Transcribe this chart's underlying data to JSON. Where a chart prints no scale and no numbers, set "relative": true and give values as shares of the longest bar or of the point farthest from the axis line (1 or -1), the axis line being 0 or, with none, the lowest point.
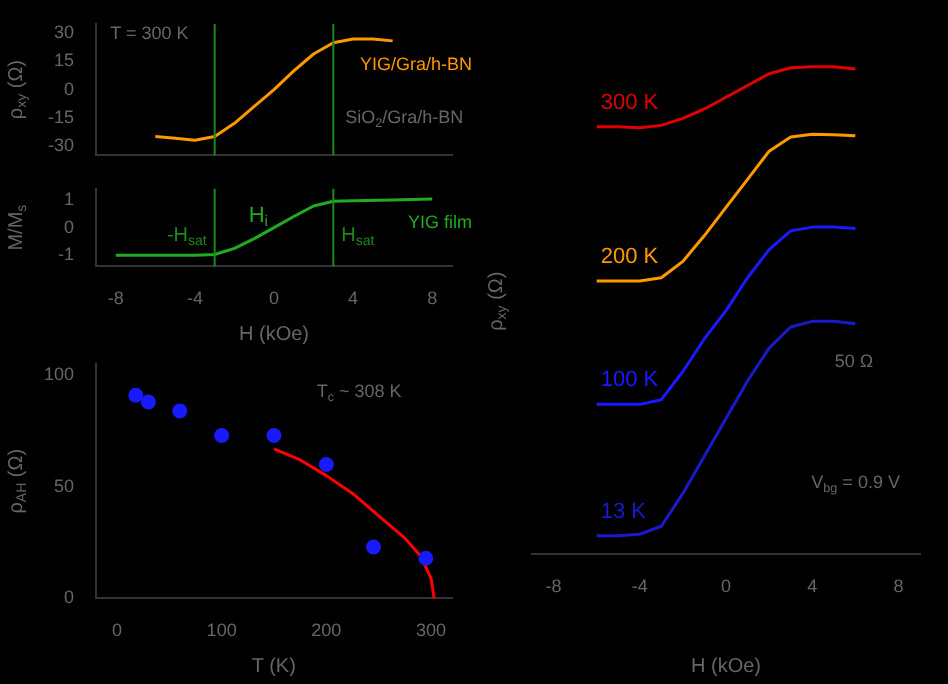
{
  "chart_data": [
    {
      "type": "line",
      "ylabel": "ρ$_{xy}$ (Ω)",
      "xlim": [
        -9,
        9
      ],
      "xticks": [
        -8,
        -4,
        0,
        4,
        8
      ],
      "ylim": [
        -35,
        35
      ],
      "yticks": [
        -30,
        -15,
        0,
        15,
        30
      ],
      "tick_labels": "y",
      "marker": "none",
      "grid": false,
      "legend": false,
      "series": [
        {
          "name": "YIG/Gra/h-BN",
          "color": "#ff9900",
          "x": [
            -6,
            -5,
            -4,
            -3,
            -2,
            -1,
            0,
            1,
            2,
            3,
            4,
            5,
            6
          ],
          "values": [
            -25,
            -26,
            -27,
            -25,
            -18,
            -9,
            0,
            10,
            19,
            25,
            27,
            27,
            26
          ]
        }
      ],
      "ref_lines": [
        {
          "axis": "x",
          "value": -3,
          "color": "#1a8a1a"
        },
        {
          "axis": "x",
          "value": 3,
          "color": "#1a8a1a"
        }
      ],
      "annotations": [
        "T = 300 K",
        "SiO$_{2}$/Gra/h-BN"
      ]
    },
    {
      "type": "line",
      "xlabel": "H (kOe)",
      "ylabel": "M/M$_{s}$",
      "xlim": [
        -9,
        9
      ],
      "xticks": [
        -8,
        -4,
        0,
        4,
        8
      ],
      "ylim": [
        -1.4,
        1.4
      ],
      "yticks": [
        -1,
        0,
        1
      ],
      "marker": "none",
      "grid": false,
      "legend": false,
      "series": [
        {
          "name": "YIG film",
          "color": "#22aa22",
          "x": [
            -8,
            -6,
            -4,
            -3,
            -2,
            -1,
            0,
            1,
            2,
            3,
            4,
            6,
            8
          ],
          "values": [
            -1,
            -1,
            -1,
            -0.97,
            -0.75,
            -0.4,
            0,
            0.4,
            0.78,
            0.95,
            0.97,
            1,
            1.03
          ]
        }
      ],
      "ref_lines": [
        {
          "axis": "x",
          "value": -3,
          "label": "-H$_{sat}$",
          "color": "#1a8a1a"
        },
        {
          "axis": "x",
          "value": 3,
          "label": "H$_{sat}$",
          "color": "#1a8a1a"
        }
      ],
      "annotations": [
        {
          "text": "H$_{i}$",
          "x": 0,
          "y": 0
        }
      ]
    },
    {
      "type": "scatter",
      "xlabel": "T (K)",
      "ylabel": "ρ$_{AH}$ (Ω)",
      "xlim": [
        -20,
        320
      ],
      "xticks": [
        0,
        100,
        200,
        300
      ],
      "ylim": [
        0,
        105
      ],
      "yticks": [
        0,
        50,
        100
      ],
      "marker": "circle",
      "grid": false,
      "legend": false,
      "series": [
        {
          "color": "#1a1aff",
          "x": [
            18,
            30,
            60,
            100,
            150,
            200,
            245,
            295
          ],
          "values": [
            91,
            88,
            84,
            73,
            73,
            60,
            23,
            18
          ]
        },
        {
          "type": "line",
          "marker": "none",
          "color": "#ff0000",
          "x": [
            150,
            175,
            200,
            225,
            250,
            275,
            290,
            300,
            303
          ],
          "values": [
            67,
            62,
            55,
            47,
            37,
            27,
            19,
            9,
            0
          ]
        }
      ],
      "annotations": [
        "T$_{c}$ ~ 308 K"
      ]
    },
    {
      "type": "line",
      "relative": true,
      "xlabel": "H (kOe)",
      "ylabel": "ρ$_{xy}$ (Ω)",
      "xlim": [
        -9,
        9
      ],
      "xticks": [
        -8,
        -4,
        0,
        4,
        8
      ],
      "marker": "none",
      "grid": false,
      "legend": false,
      "x": [
        -6,
        -5,
        -4,
        -3,
        -2,
        -1,
        0,
        1,
        2,
        3,
        4,
        5,
        6
      ],
      "series": [
        {
          "name": "300 K",
          "color": "#e00000",
          "values": [
            0.872,
            0.872,
            0.87,
            0.875,
            0.89,
            0.91,
            0.935,
            0.96,
            0.985,
            0.998,
            1,
            1,
            0.995
          ]
        },
        {
          "name": "200 K",
          "color": "#ff9900",
          "values": [
            0.543,
            0.543,
            0.543,
            0.55,
            0.585,
            0.64,
            0.7,
            0.76,
            0.82,
            0.85,
            0.856,
            0.855,
            0.853
          ]
        },
        {
          "name": "100 K",
          "color": "#1a1aff",
          "values": [
            0.28,
            0.28,
            0.28,
            0.29,
            0.35,
            0.42,
            0.48,
            0.55,
            0.61,
            0.65,
            0.658,
            0.658,
            0.655
          ]
        },
        {
          "name": "13 K",
          "color": "#1a1acc",
          "values": [
            0,
            0,
            0.003,
            0.02,
            0.09,
            0.17,
            0.25,
            0.33,
            0.4,
            0.445,
            0.457,
            0.457,
            0.452
          ]
        }
      ],
      "annotations": [
        "50 Ω",
        "V$_{bg}$ = 0.9 V"
      ]
    }
  ]
}
